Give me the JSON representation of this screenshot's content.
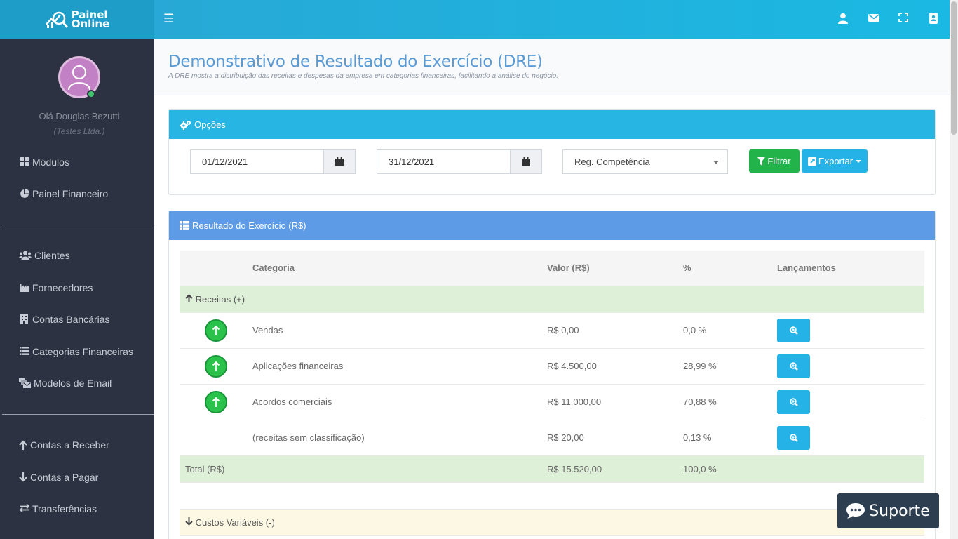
{
  "brand": {
    "line1": "Painel",
    "line2": "Online"
  },
  "header": {
    "menu_icon": "hamburger-icon",
    "icons": [
      "user-icon",
      "envelope-icon",
      "fullscreen-icon",
      "address-book-icon"
    ]
  },
  "user": {
    "greeting": "Olá Douglas Bezutti",
    "company": "(Testes Ltda.)"
  },
  "sidebar": {
    "items": [
      {
        "label": "Módulos",
        "icon": "grid-icon"
      },
      {
        "label": "Painel Financeiro",
        "icon": "pie-chart-icon"
      },
      {
        "label": "Clientes",
        "icon": "users-icon"
      },
      {
        "label": "Fornecedores",
        "icon": "industry-icon"
      },
      {
        "label": "Contas Bancárias",
        "icon": "building-icon"
      },
      {
        "label": "Categorias Financeiras",
        "icon": "list-icon"
      },
      {
        "label": "Modelos de Email",
        "icon": "mail-bulk-icon"
      },
      {
        "label": "Contas a Receber",
        "icon": "arrow-up-icon"
      },
      {
        "label": "Contas a Pagar",
        "icon": "arrow-down-icon"
      },
      {
        "label": "Transferências",
        "icon": "exchange-icon"
      }
    ]
  },
  "page": {
    "title": "Demonstrativo de Resultado do Exercício (DRE)",
    "subtitle": "A DRE mostra a distribuição das receitas e despesas da empresa em categorias financeiras, facilitando a análise do negócio."
  },
  "options": {
    "heading": "Opções",
    "date_from": "01/12/2021",
    "date_to": "31/12/2021",
    "regime": "Reg. Competência",
    "filter_label": "Filtrar",
    "export_label": "Exportar"
  },
  "result": {
    "heading": "Resultado do Exercício (R$)",
    "columns": [
      "Categoria",
      "Valor (R$)",
      "%",
      "Lançamentos"
    ],
    "revenue_group": "Receitas (+)",
    "rows": [
      {
        "category": "Vendas",
        "value": "R$ 0,00",
        "pct": "0,0 %",
        "icon": true
      },
      {
        "category": "Aplicações financeiras",
        "value": "R$ 4.500,00",
        "pct": "28,99 %",
        "icon": true
      },
      {
        "category": "Acordos comerciais",
        "value": "R$ 11.000,00",
        "pct": "70,88 %",
        "icon": true
      },
      {
        "category": "(receitas sem classificação)",
        "value": "R$ 20,00",
        "pct": "0,13 %",
        "icon": false
      }
    ],
    "total_label": "Total (R$)",
    "total_value": "R$ 15.520,00",
    "total_pct": "100,0 %",
    "variable_costs_group": "Custos Variáveis (-)"
  },
  "support": {
    "label": "Suporte"
  }
}
